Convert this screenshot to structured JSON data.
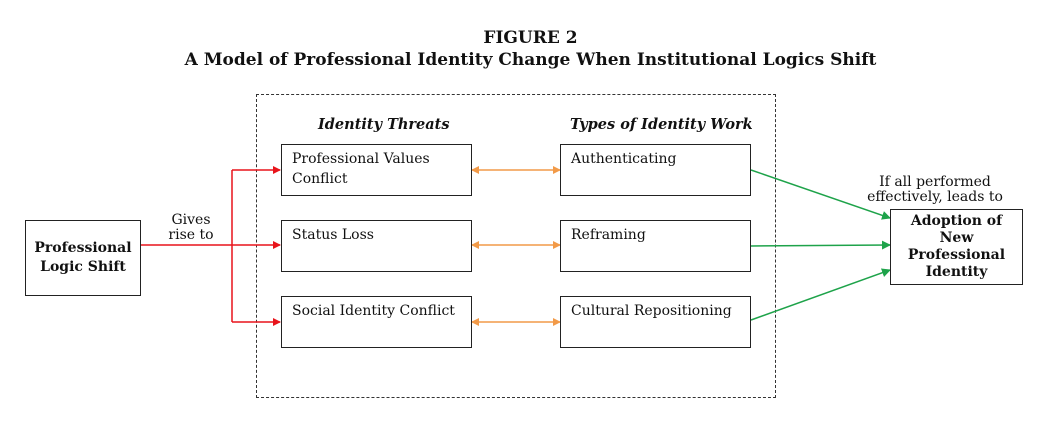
{
  "figure": {
    "number": "FIGURE 2",
    "title": "A Model of Professional Identity Change When Institutional Logics Shift"
  },
  "source_node": {
    "line1": "Professional",
    "line2": "Logic Shift"
  },
  "gives_rise_label": {
    "line1": "Gives",
    "line2": "rise to"
  },
  "columns": {
    "threats_heading": "Identity Threats",
    "work_heading": "Types of Identity Work"
  },
  "threats": [
    {
      "line1": "Professional Values",
      "line2": "Conflict"
    },
    {
      "line1": "Status Loss",
      "line2": ""
    },
    {
      "line1": "Social Identity Conflict",
      "line2": ""
    }
  ],
  "work": [
    {
      "label": "Authenticating"
    },
    {
      "label": "Reframing"
    },
    {
      "label": "Cultural Repositioning"
    }
  ],
  "outcome_label": {
    "line1": "If all performed",
    "line2": "effectively, leads to"
  },
  "outcome_node": {
    "line1": "Adoption of New",
    "line2": "Professional",
    "line3": "Identity"
  },
  "colors": {
    "red_arrow": "#e8141b",
    "orange_arrow": "#f29a48",
    "green_arrow": "#1ea34a"
  }
}
